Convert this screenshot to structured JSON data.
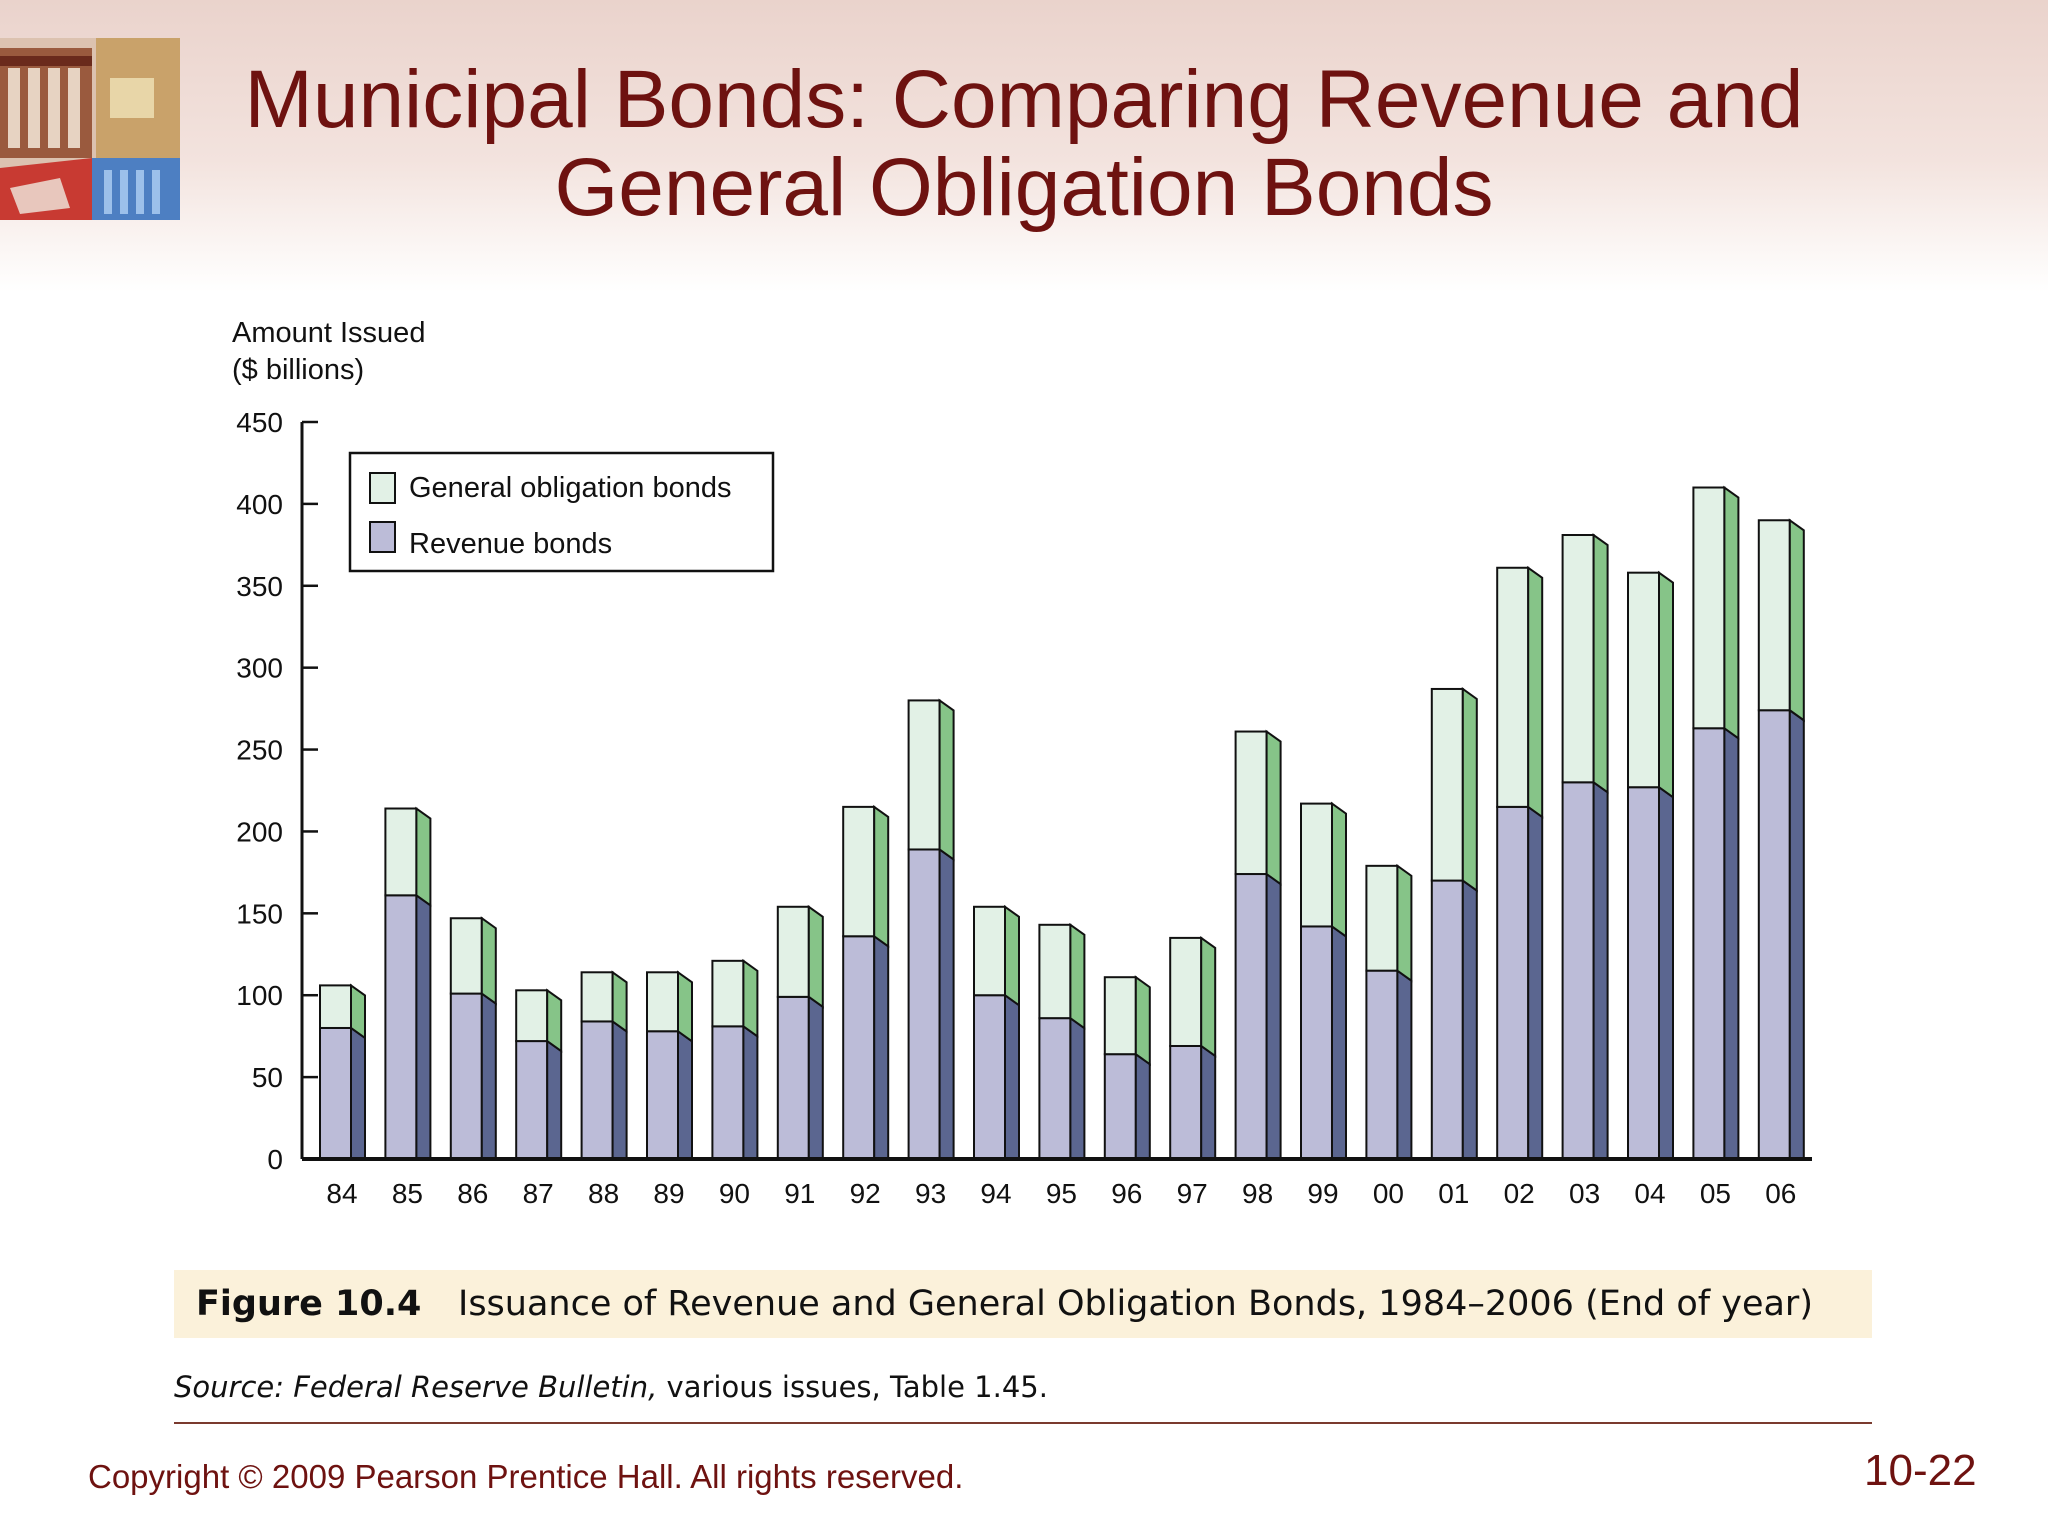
{
  "slide": {
    "title_line1": "Municipal Bonds: Comparing Revenue and",
    "title_line2": "General Obligation Bonds",
    "copyright": "Copyright © 2009 Pearson Prentice Hall. All rights reserved.",
    "page_number": "10-22"
  },
  "figure": {
    "number": "Figure 10.4",
    "caption": "Issuance of Revenue and General Obligation Bonds, 1984–2006 (End of year)",
    "source_label": "Source:",
    "source_title": "Federal Reserve Bulletin,",
    "source_rest": "various issues, Table 1.45."
  },
  "chart_data": {
    "type": "bar",
    "stacked": true,
    "ylabel_line1": "Amount Issued",
    "ylabel_line2": "($ billions)",
    "ylim": [
      0,
      450
    ],
    "yticks": [
      "0",
      "50",
      "100",
      "150",
      "200",
      "250",
      "300",
      "350",
      "400",
      "450"
    ],
    "categories": [
      "84",
      "85",
      "86",
      "87",
      "88",
      "89",
      "90",
      "91",
      "92",
      "93",
      "94",
      "95",
      "96",
      "97",
      "98",
      "99",
      "00",
      "01",
      "02",
      "03",
      "04",
      "05",
      "06"
    ],
    "series": [
      {
        "name": "Revenue bonds",
        "color": "#bcbcd8",
        "side_color": "#5b6690",
        "values": [
          80,
          161,
          101,
          72,
          84,
          78,
          81,
          99,
          136,
          189,
          100,
          86,
          64,
          69,
          174,
          142,
          115,
          170,
          215,
          230,
          227,
          263,
          274
        ]
      },
      {
        "name": "General obligation bonds",
        "color": "#e2f1e6",
        "side_color": "#86c488",
        "values": [
          26,
          53,
          46,
          31,
          30,
          36,
          40,
          55,
          79,
          91,
          54,
          57,
          47,
          66,
          87,
          75,
          64,
          117,
          146,
          151,
          131,
          147,
          116
        ]
      }
    ],
    "legend_position": "top-left",
    "grid": false
  }
}
